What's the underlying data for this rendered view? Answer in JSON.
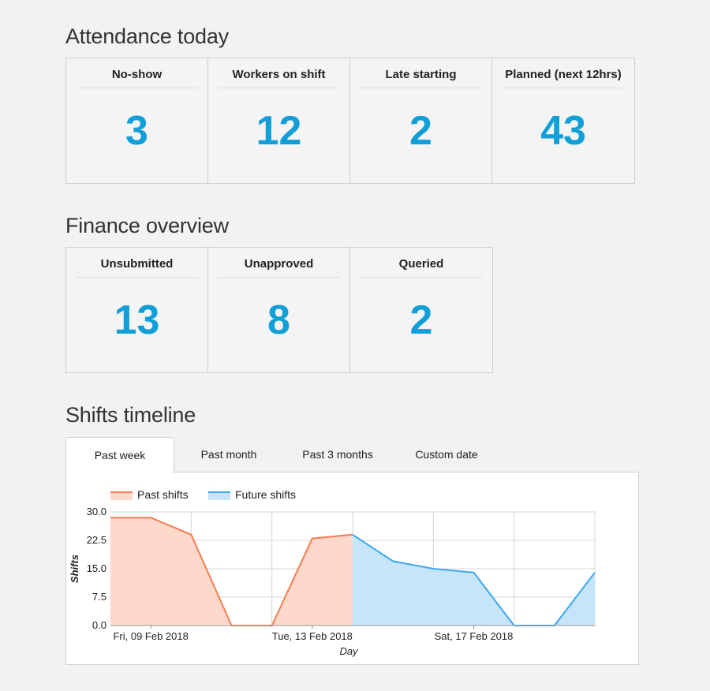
{
  "attendance": {
    "title": "Attendance today",
    "cards": [
      {
        "label": "No-show",
        "value": "3"
      },
      {
        "label": "Workers on shift",
        "value": "12"
      },
      {
        "label": "Late starting",
        "value": "2"
      },
      {
        "label": "Planned (next 12hrs)",
        "value": "43"
      }
    ]
  },
  "finance": {
    "title": "Finance overview",
    "cards": [
      {
        "label": "Unsubmitted",
        "value": "13"
      },
      {
        "label": "Unapproved",
        "value": "8"
      },
      {
        "label": "Queried",
        "value": "2"
      }
    ]
  },
  "timeline": {
    "title": "Shifts timeline",
    "tabs": [
      {
        "label": "Past week",
        "active": true
      },
      {
        "label": "Past month",
        "active": false
      },
      {
        "label": "Past 3 months",
        "active": false
      },
      {
        "label": "Custom date",
        "active": false
      }
    ]
  },
  "colors": {
    "accent": "#129fd8",
    "past_line": "#f47d4f",
    "past_fill": "#fdd8cb",
    "future_line": "#3aa7ef",
    "future_fill": "#c6e5fb"
  },
  "chart_data": {
    "type": "area",
    "legend": [
      {
        "name": "Past shifts",
        "color_key": "past"
      },
      {
        "name": "Future shifts",
        "color_key": "future"
      }
    ],
    "legend_position": "top-left",
    "xlabel": "Day",
    "ylabel": "Shifts",
    "ylim": [
      0,
      30
    ],
    "yticks": [
      "0.0",
      "7.5",
      "15.0",
      "22.5",
      "30.0"
    ],
    "xrange": [
      "2018-02-08",
      "2018-02-20"
    ],
    "xticks": [
      {
        "date": "2018-02-09",
        "label": "Fri, 09 Feb 2018"
      },
      {
        "date": "2018-02-13",
        "label": "Tue, 13 Feb 2018"
      },
      {
        "date": "2018-02-17",
        "label": "Sat, 17 Feb 2018"
      }
    ],
    "grid": true,
    "series": [
      {
        "name": "Past shifts",
        "points": [
          [
            "2018-02-08",
            28.5
          ],
          [
            "2018-02-09",
            28.5
          ],
          [
            "2018-02-10",
            24
          ],
          [
            "2018-02-11",
            0
          ],
          [
            "2018-02-12",
            0
          ],
          [
            "2018-02-13",
            23
          ],
          [
            "2018-02-14",
            24
          ]
        ]
      },
      {
        "name": "Future shifts",
        "points": [
          [
            "2018-02-14",
            24
          ],
          [
            "2018-02-15",
            17
          ],
          [
            "2018-02-16",
            15
          ],
          [
            "2018-02-17",
            14
          ],
          [
            "2018-02-18",
            0
          ],
          [
            "2018-02-19",
            0
          ],
          [
            "2018-02-20",
            14
          ]
        ]
      }
    ]
  }
}
